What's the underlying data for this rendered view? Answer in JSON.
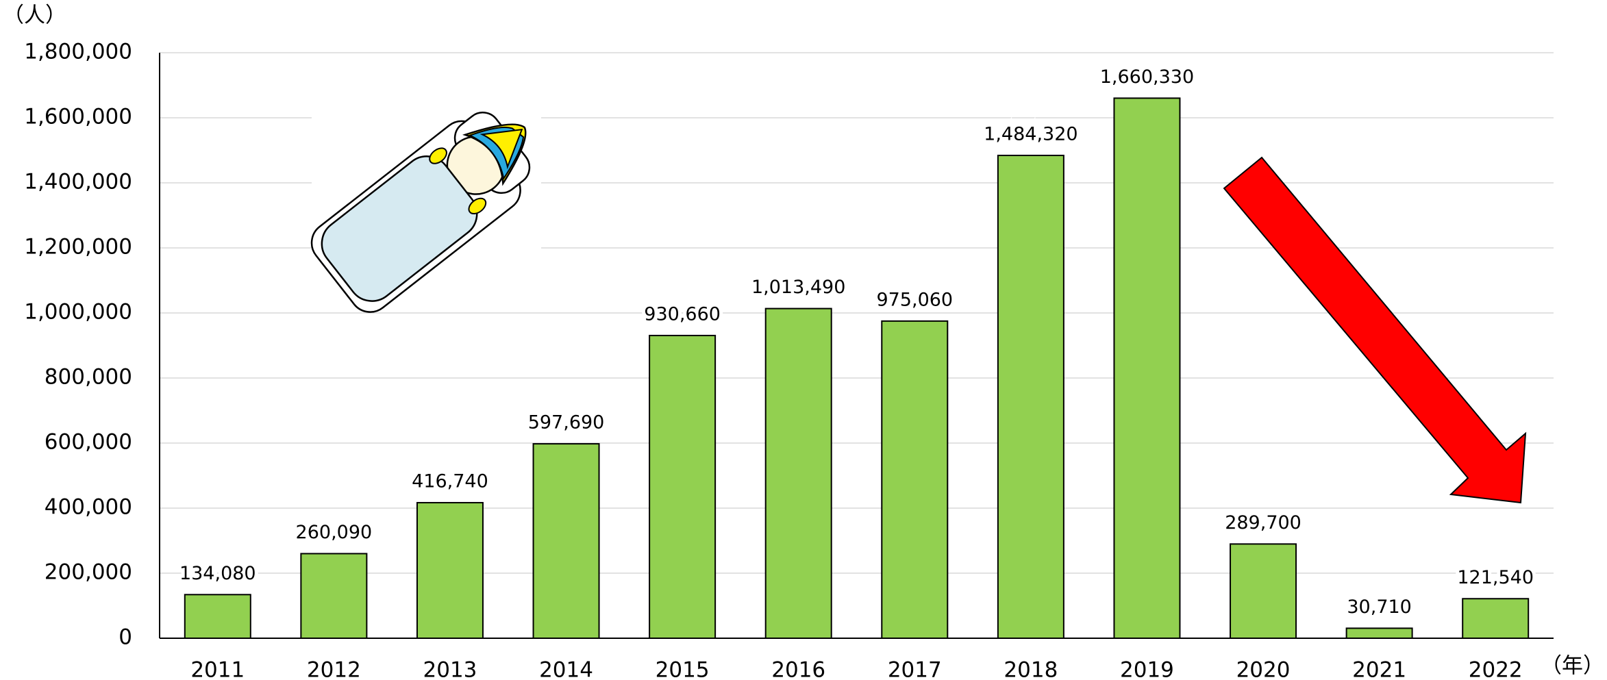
{
  "chart_data": {
    "type": "bar",
    "y_unit": "（人）",
    "x_unit": "（年）",
    "categories": [
      "2011",
      "2012",
      "2013",
      "2014",
      "2015",
      "2016",
      "2017",
      "2018",
      "2019",
      "2020",
      "2021",
      "2022"
    ],
    "values": [
      134080,
      260090,
      416740,
      597690,
      930660,
      1013490,
      975060,
      1484320,
      1660330,
      289700,
      30710,
      121540
    ],
    "value_labels": [
      "134,080",
      "260,090",
      "416,740",
      "597,690",
      "930,660",
      "1,013,490",
      "975,060",
      "1,484,320",
      "1,660,330",
      "289,700",
      "30,710",
      "121,540"
    ],
    "color": "#92d050",
    "ylim": [
      0,
      1800000
    ],
    "yticks": [
      0,
      {
        "value": 200000,
        "label": "200,000"
      },
      {
        "value": 400000,
        "label": "400,000"
      },
      {
        "value": 600000,
        "label": "600,000"
      },
      {
        "value": 800000,
        "label": "800,000"
      },
      {
        "value": 1000000,
        "label": "1,000,000"
      },
      {
        "value": 1200000,
        "label": "1,200,000"
      },
      {
        "value": 1400000,
        "label": "1,400,000"
      },
      {
        "value": 1600000,
        "label": "1,600,000"
      },
      {
        "value": 1800000,
        "label": "1,800,000"
      }
    ],
    "grid": true
  }
}
